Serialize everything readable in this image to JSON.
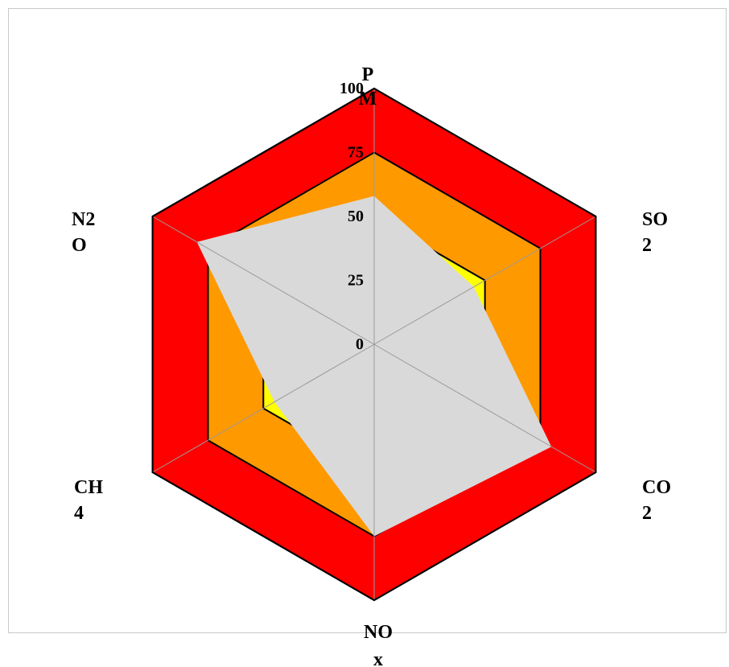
{
  "chart_data": {
    "type": "radar",
    "axes": [
      "PM",
      "SO2",
      "CO2",
      "NOx",
      "CH4",
      "N2O"
    ],
    "axis_label_lines": [
      [
        "P",
        "M"
      ],
      [
        "SO",
        "2"
      ],
      [
        "CO",
        "2"
      ],
      [
        "NO",
        "x"
      ],
      [
        "CH",
        "4"
      ],
      [
        "N2",
        "O"
      ]
    ],
    "rmax": 100,
    "ticks": [
      0,
      25,
      50,
      75,
      100
    ],
    "bands": [
      {
        "from": 75,
        "to": 100,
        "color": "#ff0000"
      },
      {
        "from": 50,
        "to": 75,
        "color": "#ff9900"
      },
      {
        "from": 0,
        "to": 50,
        "color": "#ffff00"
      }
    ],
    "series": [
      {
        "values": [
          58,
          45,
          80,
          75,
          45,
          80
        ],
        "color": "#d9d9d9"
      }
    ],
    "grid": true
  }
}
